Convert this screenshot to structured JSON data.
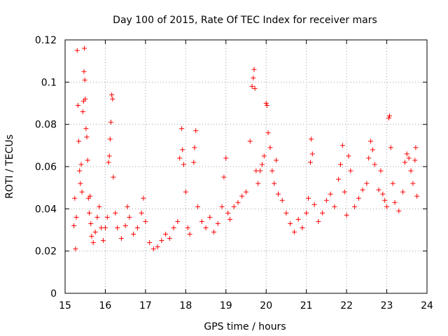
{
  "chart_data": {
    "type": "scatter",
    "title": "Day 100 of 2015, Rate Of TEC Index for receiver mars",
    "xlabel": "GPS time / hours",
    "ylabel": "ROTI / TECUs",
    "xlim": [
      15,
      24
    ],
    "ylim": [
      0,
      0.12
    ],
    "x_ticks": [
      15,
      16,
      17,
      18,
      19,
      20,
      21,
      22,
      23,
      24
    ],
    "x_tick_labels": [
      "15",
      "16",
      "17",
      "18",
      "19",
      "20",
      "21",
      "22",
      "23",
      "24"
    ],
    "y_ticks": [
      0,
      0.02,
      0.04,
      0.06,
      0.08,
      0.1,
      0.12
    ],
    "y_tick_labels": [
      "0",
      "0.02",
      "0.04",
      "0.06",
      "0.08",
      "0.1",
      "0.12"
    ],
    "grid": true,
    "marker": "+",
    "color": "#ff0000",
    "series": [
      {
        "name": "ROTI",
        "points": [
          [
            15.22,
            0.032
          ],
          [
            15.24,
            0.045
          ],
          [
            15.26,
            0.021
          ],
          [
            15.28,
            0.036
          ],
          [
            15.3,
            0.115
          ],
          [
            15.32,
            0.089
          ],
          [
            15.34,
            0.072
          ],
          [
            15.36,
            0.058
          ],
          [
            15.38,
            0.052
          ],
          [
            15.4,
            0.061
          ],
          [
            15.42,
            0.048
          ],
          [
            15.44,
            0.086
          ],
          [
            15.46,
            0.091
          ],
          [
            15.47,
            0.105
          ],
          [
            15.48,
            0.116
          ],
          [
            15.49,
            0.101
          ],
          [
            15.5,
            0.092
          ],
          [
            15.52,
            0.078
          ],
          [
            15.54,
            0.074
          ],
          [
            15.56,
            0.063
          ],
          [
            15.58,
            0.045
          ],
          [
            15.6,
            0.038
          ],
          [
            15.62,
            0.046
          ],
          [
            15.64,
            0.033
          ],
          [
            15.66,
            0.027
          ],
          [
            15.7,
            0.024
          ],
          [
            15.75,
            0.029
          ],
          [
            15.8,
            0.036
          ],
          [
            15.85,
            0.041
          ],
          [
            15.9,
            0.031
          ],
          [
            15.95,
            0.025
          ],
          [
            16.0,
            0.031
          ],
          [
            16.05,
            0.036
          ],
          [
            16.08,
            0.062
          ],
          [
            16.1,
            0.065
          ],
          [
            16.12,
            0.073
          ],
          [
            16.14,
            0.081
          ],
          [
            16.16,
            0.094
          ],
          [
            16.18,
            0.092
          ],
          [
            16.2,
            0.055
          ],
          [
            16.25,
            0.038
          ],
          [
            16.3,
            0.031
          ],
          [
            16.4,
            0.026
          ],
          [
            16.5,
            0.032
          ],
          [
            16.55,
            0.041
          ],
          [
            16.6,
            0.036
          ],
          [
            16.7,
            0.028
          ],
          [
            16.8,
            0.031
          ],
          [
            16.9,
            0.038
          ],
          [
            16.95,
            0.045
          ],
          [
            17.0,
            0.034
          ],
          [
            17.1,
            0.024
          ],
          [
            17.2,
            0.021
          ],
          [
            17.3,
            0.022
          ],
          [
            17.4,
            0.025
          ],
          [
            17.5,
            0.028
          ],
          [
            17.6,
            0.026
          ],
          [
            17.7,
            0.031
          ],
          [
            17.8,
            0.034
          ],
          [
            17.85,
            0.064
          ],
          [
            17.9,
            0.078
          ],
          [
            17.92,
            0.068
          ],
          [
            17.95,
            0.061
          ],
          [
            18.0,
            0.048
          ],
          [
            18.05,
            0.031
          ],
          [
            18.1,
            0.028
          ],
          [
            18.2,
            0.062
          ],
          [
            18.22,
            0.069
          ],
          [
            18.25,
            0.077
          ],
          [
            18.3,
            0.041
          ],
          [
            18.4,
            0.034
          ],
          [
            18.5,
            0.031
          ],
          [
            18.6,
            0.036
          ],
          [
            18.7,
            0.029
          ],
          [
            18.8,
            0.033
          ],
          [
            18.9,
            0.041
          ],
          [
            18.95,
            0.055
          ],
          [
            19.0,
            0.064
          ],
          [
            19.05,
            0.038
          ],
          [
            19.1,
            0.035
          ],
          [
            19.2,
            0.041
          ],
          [
            19.3,
            0.043
          ],
          [
            19.4,
            0.046
          ],
          [
            19.5,
            0.048
          ],
          [
            19.6,
            0.072
          ],
          [
            19.65,
            0.098
          ],
          [
            19.68,
            0.102
          ],
          [
            19.7,
            0.106
          ],
          [
            19.72,
            0.097
          ],
          [
            19.75,
            0.058
          ],
          [
            19.8,
            0.052
          ],
          [
            19.85,
            0.058
          ],
          [
            19.9,
            0.061
          ],
          [
            19.95,
            0.065
          ],
          [
            20.0,
            0.09
          ],
          [
            20.02,
            0.089
          ],
          [
            20.05,
            0.076
          ],
          [
            20.1,
            0.069
          ],
          [
            20.15,
            0.058
          ],
          [
            20.2,
            0.052
          ],
          [
            20.25,
            0.063
          ],
          [
            20.3,
            0.047
          ],
          [
            20.4,
            0.044
          ],
          [
            20.5,
            0.038
          ],
          [
            20.6,
            0.033
          ],
          [
            20.7,
            0.029
          ],
          [
            20.8,
            0.035
          ],
          [
            20.9,
            0.031
          ],
          [
            21.0,
            0.038
          ],
          [
            21.05,
            0.045
          ],
          [
            21.1,
            0.062
          ],
          [
            21.12,
            0.073
          ],
          [
            21.15,
            0.066
          ],
          [
            21.2,
            0.042
          ],
          [
            21.3,
            0.034
          ],
          [
            21.4,
            0.038
          ],
          [
            21.5,
            0.044
          ],
          [
            21.6,
            0.047
          ],
          [
            21.7,
            0.041
          ],
          [
            21.8,
            0.054
          ],
          [
            21.85,
            0.061
          ],
          [
            21.9,
            0.07
          ],
          [
            21.95,
            0.048
          ],
          [
            22.0,
            0.037
          ],
          [
            22.05,
            0.065
          ],
          [
            22.1,
            0.058
          ],
          [
            22.2,
            0.041
          ],
          [
            22.3,
            0.045
          ],
          [
            22.4,
            0.049
          ],
          [
            22.5,
            0.052
          ],
          [
            22.55,
            0.064
          ],
          [
            22.6,
            0.072
          ],
          [
            22.65,
            0.068
          ],
          [
            22.7,
            0.061
          ],
          [
            22.8,
            0.049
          ],
          [
            22.85,
            0.058
          ],
          [
            22.9,
            0.047
          ],
          [
            22.95,
            0.044
          ],
          [
            23.0,
            0.041
          ],
          [
            23.05,
            0.083
          ],
          [
            23.07,
            0.084
          ],
          [
            23.1,
            0.069
          ],
          [
            23.15,
            0.052
          ],
          [
            23.2,
            0.043
          ],
          [
            23.3,
            0.039
          ],
          [
            23.4,
            0.048
          ],
          [
            23.45,
            0.062
          ],
          [
            23.5,
            0.066
          ],
          [
            23.55,
            0.064
          ],
          [
            23.6,
            0.058
          ],
          [
            23.65,
            0.052
          ],
          [
            23.7,
            0.063
          ],
          [
            23.72,
            0.069
          ],
          [
            23.75,
            0.046
          ]
        ]
      }
    ]
  }
}
